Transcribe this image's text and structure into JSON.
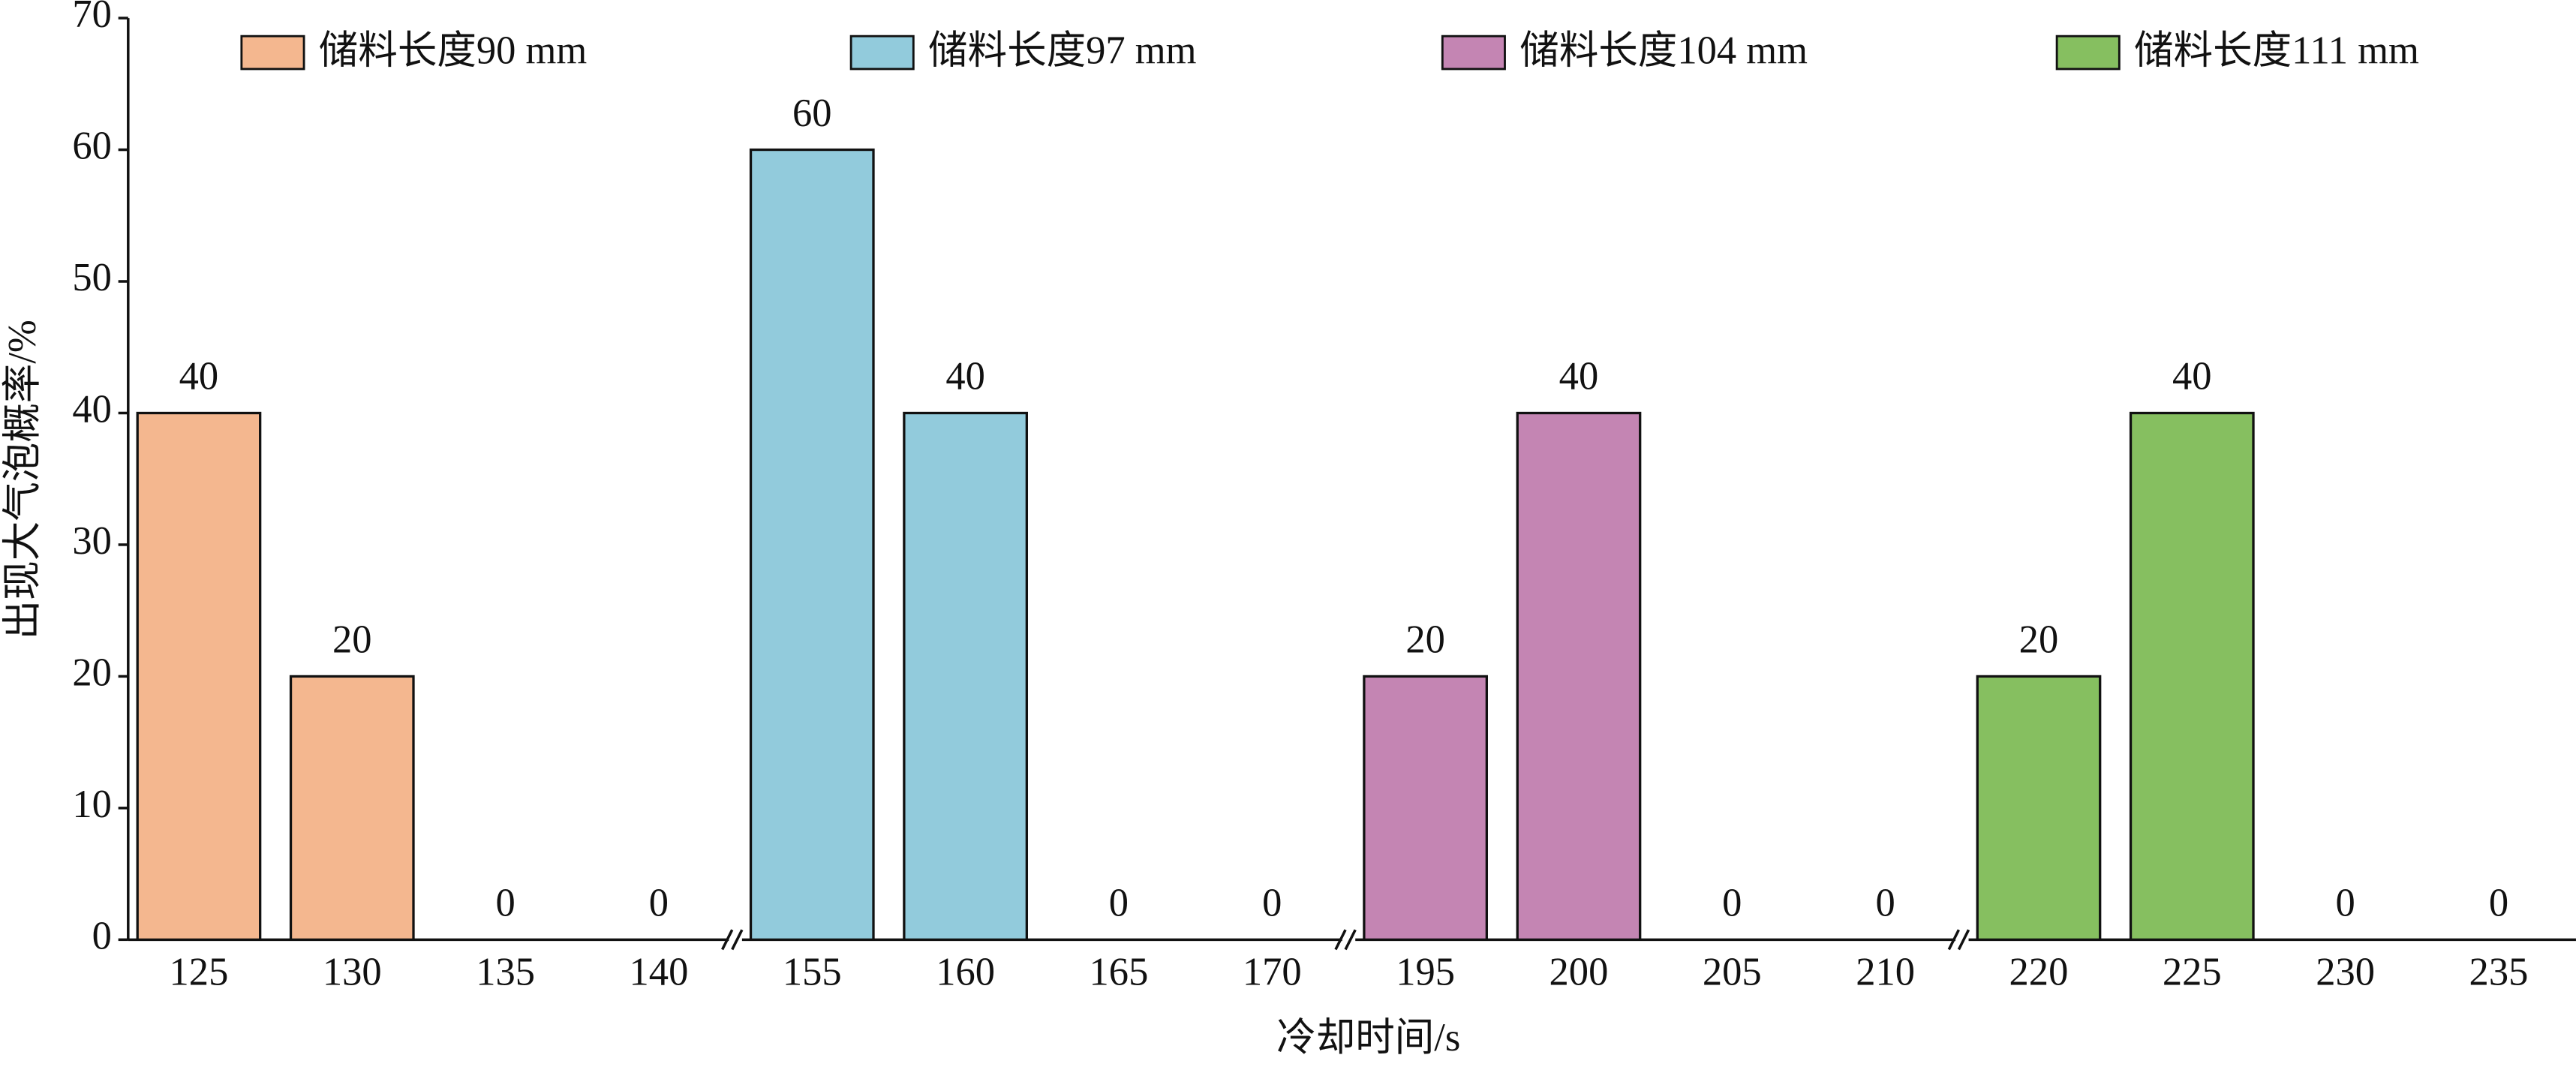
{
  "chart_data": {
    "type": "bar",
    "x_label": "冷却时间/s",
    "y_label": "出现大气泡概率/%",
    "categories": [
      "125",
      "130",
      "135",
      "140",
      "155",
      "160",
      "165",
      "170",
      "195",
      "200",
      "205",
      "210",
      "220",
      "225",
      "230",
      "235"
    ],
    "series": [
      {
        "name": "储料长度90 mm",
        "color": "#f4b78f",
        "values": [
          40,
          20,
          0,
          0,
          null,
          null,
          null,
          null,
          null,
          null,
          null,
          null,
          null,
          null,
          null,
          null
        ]
      },
      {
        "name": "储料长度97 mm",
        "color": "#92cbdc",
        "values": [
          null,
          null,
          null,
          null,
          60,
          40,
          0,
          0,
          null,
          null,
          null,
          null,
          null,
          null,
          null,
          null
        ]
      },
      {
        "name": "储料长度104 mm",
        "color": "#c485b3",
        "values": [
          null,
          null,
          null,
          null,
          null,
          null,
          null,
          null,
          20,
          40,
          0,
          0,
          null,
          null,
          null,
          null
        ]
      },
      {
        "name": "储料长度111 mm",
        "color": "#86bf60",
        "values": [
          null,
          null,
          null,
          null,
          null,
          null,
          null,
          null,
          null,
          null,
          null,
          null,
          20,
          40,
          0,
          0
        ]
      }
    ],
    "ylim": [
      0,
      70
    ],
    "yticks": [
      0,
      10,
      20,
      30,
      40,
      50,
      60,
      70
    ],
    "axis_breaks": true
  }
}
